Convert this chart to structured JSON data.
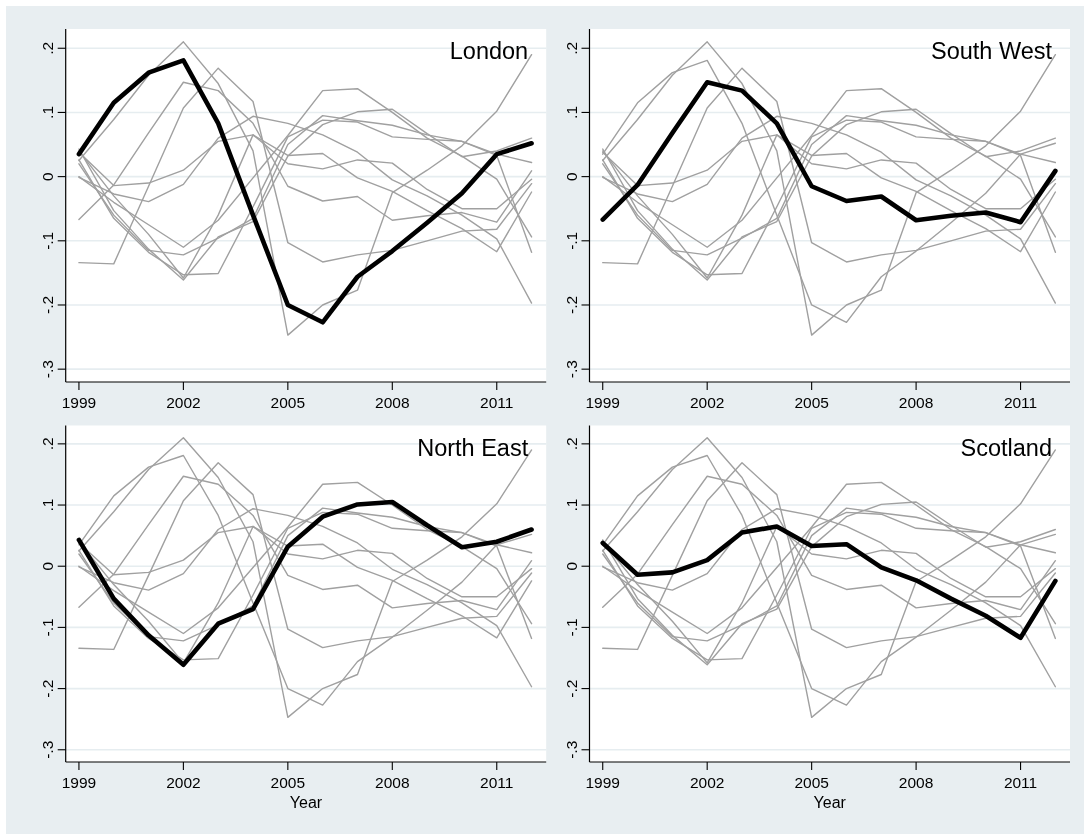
{
  "chart_data": [
    {
      "type": "line",
      "x": [
        1999,
        2000,
        2001,
        2002,
        2003,
        2004,
        2005,
        2006,
        2007,
        2008,
        2009,
        2010,
        2011,
        2012
      ],
      "xlim": [
        1998.62,
        2012.42
      ],
      "xticks": [
        1999,
        2002,
        2005,
        2008,
        2011
      ],
      "ylim": [
        -0.32,
        0.23
      ],
      "yticks": [
        {
          "value": -0.3,
          "label": "-.3"
        },
        {
          "value": -0.2,
          "label": "-.2"
        },
        {
          "value": -0.1,
          "label": "-.1"
        },
        {
          "value": 0,
          "label": "0"
        },
        {
          "value": 0.1,
          "label": ".1"
        },
        {
          "value": 0.2,
          "label": ".2"
        }
      ],
      "grid": "y",
      "series": [
        {
          "color": "#a0a0a0",
          "values": [
            0.025,
            0.089,
            0.158,
            0.21,
            0.145,
            0.04,
            -0.247,
            -0.2,
            -0.177,
            -0.025,
            0.01,
            0.048,
            0.102,
            0.19
          ]
        },
        {
          "color": "#a0a0a0",
          "values": [
            -0.134,
            -0.136,
            -0.015,
            0.107,
            0.169,
            0.117,
            -0.103,
            -0.133,
            -0.122,
            -0.115,
            -0.1,
            -0.085,
            -0.082,
            -0.011
          ]
        },
        {
          "color": "#a0a0a0",
          "values": [
            0.0,
            -0.04,
            -0.075,
            -0.11,
            -0.068,
            -0.002,
            0.064,
            0.134,
            0.137,
            0.1,
            0.06,
            0.032,
            -0.004,
            -0.094
          ]
        },
        {
          "color": "#a0a0a0",
          "values": [
            0.02,
            -0.06,
            -0.115,
            -0.122,
            -0.096,
            -0.065,
            0.05,
            0.095,
            0.087,
            0.08,
            0.065,
            0.055,
            0.035,
            0.022
          ]
        },
        {
          "color": "#a0a0a0",
          "values": [
            0.026,
            -0.065,
            -0.118,
            -0.153,
            -0.151,
            -0.047,
            0.062,
            0.088,
            0.085,
            0.062,
            0.058,
            0.055,
            0.033,
            -0.118
          ]
        },
        {
          "color": "#a0a0a0",
          "values": [
            -0.001,
            -0.027,
            -0.039,
            -0.012,
            0.06,
            0.094,
            0.083,
            0.065,
            0.038,
            -0.005,
            -0.03,
            -0.06,
            -0.097,
            -0.197
          ]
        },
        {
          "color": "#a0a0a0",
          "values": [
            0.04,
            -0.03,
            -0.09,
            -0.158,
            -0.06,
            0.065,
            0.02,
            0.012,
            0.026,
            0.021,
            -0.02,
            -0.05,
            -0.05,
            -0.004
          ]
        },
        {
          "color": "#a0a0a0",
          "values": [
            -0.067,
            -0.013,
            0.068,
            0.147,
            0.134,
            0.083,
            -0.015,
            -0.038,
            -0.031,
            -0.068,
            -0.061,
            -0.056,
            -0.071,
            0.009
          ]
        },
        {
          "color": "#a0a0a0",
          "values": [
            0.043,
            -0.053,
            -0.113,
            -0.161,
            -0.094,
            -0.07,
            0.032,
            0.081,
            0.101,
            0.105,
            0.067,
            0.031,
            0.04,
            0.06
          ]
        },
        {
          "color": "#a0a0a0",
          "values": [
            0.038,
            -0.014,
            -0.01,
            0.01,
            0.055,
            0.065,
            0.033,
            0.036,
            -0.002,
            -0.023,
            -0.053,
            -0.081,
            -0.117,
            -0.024
          ]
        },
        {
          "name": "London",
          "color": "#000000",
          "values": [
            0.035,
            0.115,
            0.162,
            0.181,
            0.083,
            -0.06,
            -0.2,
            -0.227,
            -0.156,
            -0.116,
            -0.072,
            -0.026,
            0.035,
            0.052
          ]
        }
      ]
    },
    {
      "type": "line",
      "x": [
        1999,
        2000,
        2001,
        2002,
        2003,
        2004,
        2005,
        2006,
        2007,
        2008,
        2009,
        2010,
        2011,
        2012
      ],
      "xlim": [
        1998.62,
        2012.42
      ],
      "xticks": [
        1999,
        2002,
        2005,
        2008,
        2011
      ],
      "ylim": [
        -0.32,
        0.23
      ],
      "yticks": [
        {
          "value": -0.3,
          "label": "-.3"
        },
        {
          "value": -0.2,
          "label": "-.2"
        },
        {
          "value": -0.1,
          "label": "-.1"
        },
        {
          "value": 0,
          "label": "0"
        },
        {
          "value": 0.1,
          "label": ".1"
        },
        {
          "value": 0.2,
          "label": ".2"
        }
      ],
      "grid": "y",
      "series": [
        {
          "color": "#a0a0a0",
          "values": [
            0.025,
            0.089,
            0.158,
            0.21,
            0.145,
            0.04,
            -0.247,
            -0.2,
            -0.177,
            -0.025,
            0.01,
            0.048,
            0.102,
            0.19
          ]
        },
        {
          "color": "#a0a0a0",
          "values": [
            -0.134,
            -0.136,
            -0.015,
            0.107,
            0.169,
            0.117,
            -0.103,
            -0.133,
            -0.122,
            -0.115,
            -0.1,
            -0.085,
            -0.082,
            -0.011
          ]
        },
        {
          "color": "#a0a0a0",
          "values": [
            0.0,
            -0.04,
            -0.075,
            -0.11,
            -0.068,
            -0.002,
            0.064,
            0.134,
            0.137,
            0.1,
            0.06,
            0.032,
            -0.004,
            -0.094
          ]
        },
        {
          "color": "#a0a0a0",
          "values": [
            0.02,
            -0.06,
            -0.115,
            -0.122,
            -0.096,
            -0.065,
            0.05,
            0.095,
            0.087,
            0.08,
            0.065,
            0.055,
            0.035,
            0.022
          ]
        },
        {
          "color": "#a0a0a0",
          "values": [
            0.026,
            -0.065,
            -0.118,
            -0.153,
            -0.151,
            -0.047,
            0.062,
            0.088,
            0.085,
            0.062,
            0.058,
            0.055,
            0.033,
            -0.118
          ]
        },
        {
          "color": "#a0a0a0",
          "values": [
            -0.001,
            -0.027,
            -0.039,
            -0.012,
            0.06,
            0.094,
            0.083,
            0.065,
            0.038,
            -0.005,
            -0.03,
            -0.06,
            -0.097,
            -0.197
          ]
        },
        {
          "color": "#a0a0a0",
          "values": [
            0.04,
            -0.03,
            -0.09,
            -0.158,
            -0.06,
            0.065,
            0.02,
            0.012,
            0.026,
            0.021,
            -0.02,
            -0.05,
            -0.05,
            -0.004
          ]
        },
        {
          "color": "#a0a0a0",
          "values": [
            0.035,
            0.115,
            0.162,
            0.181,
            0.083,
            -0.06,
            -0.2,
            -0.227,
            -0.156,
            -0.116,
            -0.072,
            -0.026,
            0.035,
            0.052
          ]
        },
        {
          "color": "#a0a0a0",
          "values": [
            0.043,
            -0.053,
            -0.113,
            -0.161,
            -0.094,
            -0.07,
            0.032,
            0.081,
            0.101,
            0.105,
            0.067,
            0.031,
            0.04,
            0.06
          ]
        },
        {
          "color": "#a0a0a0",
          "values": [
            0.038,
            -0.014,
            -0.01,
            0.01,
            0.055,
            0.065,
            0.033,
            0.036,
            -0.002,
            -0.023,
            -0.053,
            -0.081,
            -0.117,
            -0.024
          ]
        },
        {
          "name": "South West",
          "color": "#000000",
          "values": [
            -0.067,
            -0.013,
            0.068,
            0.147,
            0.134,
            0.083,
            -0.015,
            -0.038,
            -0.031,
            -0.068,
            -0.061,
            -0.056,
            -0.071,
            0.009
          ]
        }
      ]
    },
    {
      "type": "line",
      "x": [
        1999,
        2000,
        2001,
        2002,
        2003,
        2004,
        2005,
        2006,
        2007,
        2008,
        2009,
        2010,
        2011,
        2012
      ],
      "xlim": [
        1998.62,
        2012.42
      ],
      "xticks": [
        1999,
        2002,
        2005,
        2008,
        2011
      ],
      "ylim": [
        -0.32,
        0.23
      ],
      "yticks": [
        {
          "value": -0.3,
          "label": "-.3"
        },
        {
          "value": -0.2,
          "label": "-.2"
        },
        {
          "value": -0.1,
          "label": "-.1"
        },
        {
          "value": 0,
          "label": "0"
        },
        {
          "value": 0.1,
          "label": ".1"
        },
        {
          "value": 0.2,
          "label": ".2"
        }
      ],
      "grid": "y",
      "xlabel": "Year",
      "series": [
        {
          "color": "#a0a0a0",
          "values": [
            0.025,
            0.089,
            0.158,
            0.21,
            0.145,
            0.04,
            -0.247,
            -0.2,
            -0.177,
            -0.025,
            0.01,
            0.048,
            0.102,
            0.19
          ]
        },
        {
          "color": "#a0a0a0",
          "values": [
            -0.134,
            -0.136,
            -0.015,
            0.107,
            0.169,
            0.117,
            -0.103,
            -0.133,
            -0.122,
            -0.115,
            -0.1,
            -0.085,
            -0.082,
            -0.011
          ]
        },
        {
          "color": "#a0a0a0",
          "values": [
            0.0,
            -0.04,
            -0.075,
            -0.11,
            -0.068,
            -0.002,
            0.064,
            0.134,
            0.137,
            0.1,
            0.06,
            0.032,
            -0.004,
            -0.094
          ]
        },
        {
          "color": "#a0a0a0",
          "values": [
            0.02,
            -0.06,
            -0.115,
            -0.122,
            -0.096,
            -0.065,
            0.05,
            0.095,
            0.087,
            0.08,
            0.065,
            0.055,
            0.035,
            0.022
          ]
        },
        {
          "color": "#a0a0a0",
          "values": [
            0.026,
            -0.065,
            -0.118,
            -0.153,
            -0.151,
            -0.047,
            0.062,
            0.088,
            0.085,
            0.062,
            0.058,
            0.055,
            0.033,
            -0.118
          ]
        },
        {
          "color": "#a0a0a0",
          "values": [
            -0.001,
            -0.027,
            -0.039,
            -0.012,
            0.06,
            0.094,
            0.083,
            0.065,
            0.038,
            -0.005,
            -0.03,
            -0.06,
            -0.097,
            -0.197
          ]
        },
        {
          "color": "#a0a0a0",
          "values": [
            0.04,
            -0.03,
            -0.09,
            -0.158,
            -0.06,
            0.065,
            0.02,
            0.012,
            0.026,
            0.021,
            -0.02,
            -0.05,
            -0.05,
            -0.004
          ]
        },
        {
          "color": "#a0a0a0",
          "values": [
            0.035,
            0.115,
            0.162,
            0.181,
            0.083,
            -0.06,
            -0.2,
            -0.227,
            -0.156,
            -0.116,
            -0.072,
            -0.026,
            0.035,
            0.052
          ]
        },
        {
          "color": "#a0a0a0",
          "values": [
            -0.067,
            -0.013,
            0.068,
            0.147,
            0.134,
            0.083,
            -0.015,
            -0.038,
            -0.031,
            -0.068,
            -0.061,
            -0.056,
            -0.071,
            0.009
          ]
        },
        {
          "color": "#a0a0a0",
          "values": [
            0.038,
            -0.014,
            -0.01,
            0.01,
            0.055,
            0.065,
            0.033,
            0.036,
            -0.002,
            -0.023,
            -0.053,
            -0.081,
            -0.117,
            -0.024
          ]
        },
        {
          "name": "North East",
          "color": "#000000",
          "values": [
            0.043,
            -0.053,
            -0.113,
            -0.161,
            -0.094,
            -0.07,
            0.032,
            0.081,
            0.101,
            0.105,
            0.067,
            0.031,
            0.04,
            0.06
          ]
        }
      ]
    },
    {
      "type": "line",
      "x": [
        1999,
        2000,
        2001,
        2002,
        2003,
        2004,
        2005,
        2006,
        2007,
        2008,
        2009,
        2010,
        2011,
        2012
      ],
      "xlim": [
        1998.62,
        2012.42
      ],
      "xticks": [
        1999,
        2002,
        2005,
        2008,
        2011
      ],
      "ylim": [
        -0.32,
        0.23
      ],
      "yticks": [
        {
          "value": -0.3,
          "label": "-.3"
        },
        {
          "value": -0.2,
          "label": "-.2"
        },
        {
          "value": -0.1,
          "label": "-.1"
        },
        {
          "value": 0,
          "label": "0"
        },
        {
          "value": 0.1,
          "label": ".1"
        },
        {
          "value": 0.2,
          "label": ".2"
        }
      ],
      "grid": "y",
      "xlabel": "Year",
      "series": [
        {
          "color": "#a0a0a0",
          "values": [
            0.025,
            0.089,
            0.158,
            0.21,
            0.145,
            0.04,
            -0.247,
            -0.2,
            -0.177,
            -0.025,
            0.01,
            0.048,
            0.102,
            0.19
          ]
        },
        {
          "color": "#a0a0a0",
          "values": [
            -0.134,
            -0.136,
            -0.015,
            0.107,
            0.169,
            0.117,
            -0.103,
            -0.133,
            -0.122,
            -0.115,
            -0.1,
            -0.085,
            -0.082,
            -0.011
          ]
        },
        {
          "color": "#a0a0a0",
          "values": [
            0.0,
            -0.04,
            -0.075,
            -0.11,
            -0.068,
            -0.002,
            0.064,
            0.134,
            0.137,
            0.1,
            0.06,
            0.032,
            -0.004,
            -0.094
          ]
        },
        {
          "color": "#a0a0a0",
          "values": [
            0.02,
            -0.06,
            -0.115,
            -0.122,
            -0.096,
            -0.065,
            0.05,
            0.095,
            0.087,
            0.08,
            0.065,
            0.055,
            0.035,
            0.022
          ]
        },
        {
          "color": "#a0a0a0",
          "values": [
            0.026,
            -0.065,
            -0.118,
            -0.153,
            -0.151,
            -0.047,
            0.062,
            0.088,
            0.085,
            0.062,
            0.058,
            0.055,
            0.033,
            -0.118
          ]
        },
        {
          "color": "#a0a0a0",
          "values": [
            -0.001,
            -0.027,
            -0.039,
            -0.012,
            0.06,
            0.094,
            0.083,
            0.065,
            0.038,
            -0.005,
            -0.03,
            -0.06,
            -0.097,
            -0.197
          ]
        },
        {
          "color": "#a0a0a0",
          "values": [
            0.04,
            -0.03,
            -0.09,
            -0.158,
            -0.06,
            0.065,
            0.02,
            0.012,
            0.026,
            0.021,
            -0.02,
            -0.05,
            -0.05,
            -0.004
          ]
        },
        {
          "color": "#a0a0a0",
          "values": [
            0.035,
            0.115,
            0.162,
            0.181,
            0.083,
            -0.06,
            -0.2,
            -0.227,
            -0.156,
            -0.116,
            -0.072,
            -0.026,
            0.035,
            0.052
          ]
        },
        {
          "color": "#a0a0a0",
          "values": [
            -0.067,
            -0.013,
            0.068,
            0.147,
            0.134,
            0.083,
            -0.015,
            -0.038,
            -0.031,
            -0.068,
            -0.061,
            -0.056,
            -0.071,
            0.009
          ]
        },
        {
          "color": "#a0a0a0",
          "values": [
            0.043,
            -0.053,
            -0.113,
            -0.161,
            -0.094,
            -0.07,
            0.032,
            0.081,
            0.101,
            0.105,
            0.067,
            0.031,
            0.04,
            0.06
          ]
        },
        {
          "name": "Scotland",
          "color": "#000000",
          "values": [
            0.038,
            -0.014,
            -0.01,
            0.01,
            0.055,
            0.065,
            0.033,
            0.036,
            -0.002,
            -0.023,
            -0.053,
            -0.081,
            -0.117,
            -0.024
          ]
        }
      ]
    }
  ]
}
